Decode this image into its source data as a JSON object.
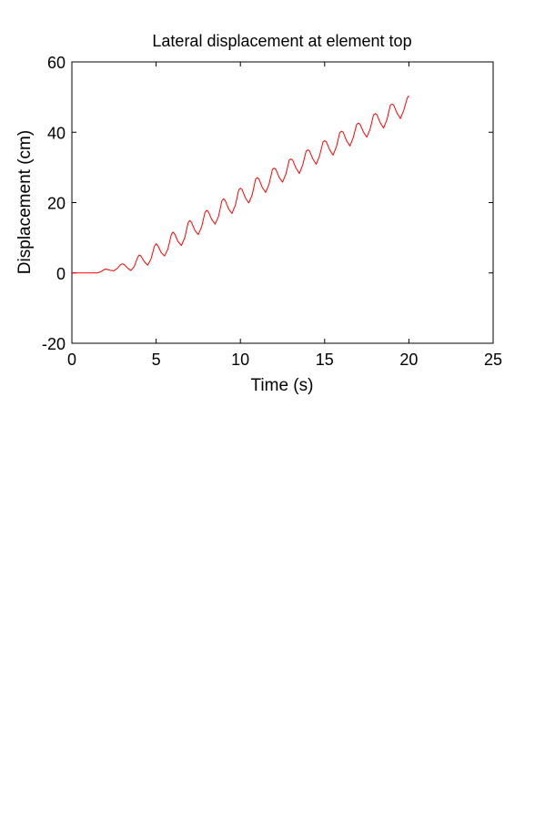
{
  "chart_data": {
    "type": "line",
    "title": "Lateral displacement at element top",
    "xlabel": "Time (s)",
    "ylabel": "Displacement (cm)",
    "xlim": [
      0,
      25
    ],
    "ylim": [
      -20,
      60
    ],
    "xticks": [
      0,
      5,
      10,
      15,
      20,
      25
    ],
    "yticks": [
      -20,
      0,
      20,
      40,
      60
    ],
    "xtick_labels": [
      "0",
      "5",
      "10",
      "15",
      "20",
      "25"
    ],
    "ytick_labels": [
      "-20",
      "0",
      "20",
      "40",
      "60"
    ],
    "grid": false,
    "legend": "none",
    "line_color": "#ff0000",
    "series": [
      {
        "x": [
          0,
          0.5,
          1.0,
          1.5,
          1.7,
          1.9,
          2.0,
          2.1,
          2.3,
          2.5,
          2.7,
          2.9,
          3.0,
          3.1,
          3.3,
          3.5,
          3.7,
          3.9,
          4.0,
          4.1,
          4.3,
          4.5,
          4.7,
          4.9,
          5.0,
          5.1,
          5.3,
          5.5,
          5.7,
          5.9,
          6.0,
          6.1,
          6.3,
          6.5,
          6.7,
          6.9,
          7.0,
          7.1,
          7.3,
          7.5,
          7.7,
          7.9,
          8.0,
          8.1,
          8.3,
          8.5,
          8.7,
          8.9,
          9.0,
          9.1,
          9.3,
          9.5,
          9.7,
          9.9,
          10.0,
          10.1,
          10.3,
          10.5,
          10.7,
          10.9,
          11.0,
          11.1,
          11.3,
          11.5,
          11.7,
          11.9,
          12.0,
          12.1,
          12.3,
          12.5,
          12.7,
          12.9,
          13.0,
          13.1,
          13.3,
          13.5,
          13.7,
          13.9,
          14.0,
          14.1,
          14.3,
          14.5,
          14.7,
          14.9,
          15.0,
          15.1,
          15.3,
          15.5,
          15.7,
          15.9,
          16.0,
          16.1,
          16.3,
          16.5,
          16.7,
          16.9,
          17.0,
          17.1,
          17.3,
          17.5,
          17.7,
          17.9,
          18.0,
          18.1,
          18.3,
          18.5,
          18.7,
          18.9,
          19.0,
          19.1,
          19.3,
          19.5,
          19.7,
          19.9,
          20.0
        ],
        "y": [
          0,
          0,
          0,
          0,
          0.3,
          0.9,
          1.1,
          1.0,
          0.7,
          0.6,
          1.3,
          2.4,
          2.6,
          2.4,
          1.4,
          0.7,
          1.8,
          4.4,
          5.1,
          4.8,
          3.2,
          2.2,
          4.0,
          7.6,
          8.3,
          7.8,
          5.8,
          4.8,
          6.8,
          10.9,
          11.6,
          11.1,
          8.9,
          7.8,
          10.0,
          14.3,
          14.9,
          14.4,
          12.1,
          10.9,
          13.1,
          17.2,
          17.8,
          17.4,
          15.2,
          13.9,
          16.0,
          20.5,
          21.1,
          20.6,
          18.2,
          16.9,
          19.2,
          23.6,
          24.1,
          23.7,
          21.3,
          19.9,
          22.2,
          26.6,
          27.1,
          26.7,
          24.3,
          22.9,
          25.2,
          29.4,
          29.8,
          29.5,
          27.2,
          25.8,
          28.1,
          32.1,
          32.4,
          32.1,
          29.8,
          28.3,
          30.7,
          34.6,
          35.0,
          34.7,
          32.4,
          30.9,
          33.3,
          37.2,
          37.6,
          37.3,
          35.0,
          33.5,
          35.9,
          39.9,
          40.3,
          40.0,
          37.6,
          36.1,
          38.5,
          42.2,
          42.6,
          42.3,
          40.1,
          38.6,
          40.9,
          44.9,
          45.3,
          45.0,
          42.7,
          41.2,
          43.6,
          47.7,
          48.0,
          47.7,
          45.4,
          43.9,
          46.3,
          49.7,
          50.4
        ]
      }
    ]
  }
}
